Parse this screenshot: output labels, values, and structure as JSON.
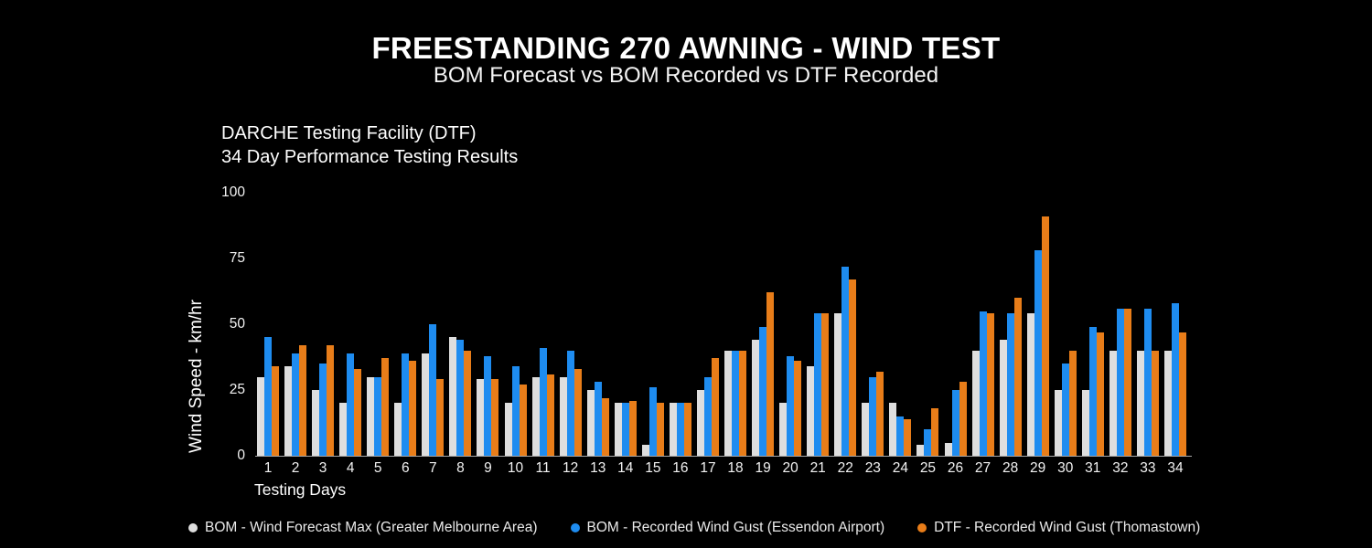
{
  "title": "FREESTANDING 270 AWNING - WIND TEST",
  "subtitle": "BOM Forecast vs BOM Recorded vs DTF Recorded",
  "annotation": {
    "line1": "DARCHE Testing Facility (DTF)",
    "line2": "34 Day Performance Testing Results"
  },
  "chart_data": {
    "type": "bar",
    "title": "FREESTANDING 270 AWNING - WIND TEST",
    "subtitle": "BOM Forecast vs BOM Recorded vs DTF Recorded",
    "xlabel": "Testing Days",
    "ylabel": "Wind Speed - km/hr",
    "ylim": [
      0,
      100
    ],
    "yticks": [
      0,
      25,
      50,
      75,
      100
    ],
    "grid": false,
    "legend_position": "bottom",
    "categories": [
      1,
      2,
      3,
      4,
      5,
      6,
      7,
      8,
      9,
      10,
      11,
      12,
      13,
      14,
      15,
      16,
      17,
      18,
      19,
      20,
      21,
      22,
      23,
      24,
      25,
      26,
      27,
      28,
      29,
      30,
      31,
      32,
      33,
      34
    ],
    "series": [
      {
        "id": "bom-forecast-max",
        "name": "BOM - Wind Forecast Max (Greater Melbourne Area)",
        "color": "#dedede",
        "values": [
          30,
          34,
          25,
          20,
          30,
          20,
          39,
          45,
          29,
          20,
          30,
          30,
          25,
          20,
          4,
          20,
          25,
          40,
          44,
          20,
          34,
          54,
          20,
          20,
          4,
          5,
          40,
          44,
          54,
          25,
          25,
          40,
          40,
          40
        ]
      },
      {
        "id": "bom-recorded-gust",
        "name": "BOM - Recorded Wind Gust (Essendon Airport)",
        "color": "#1e8cf0",
        "values": [
          45,
          39,
          35,
          39,
          30,
          39,
          50,
          44,
          38,
          34,
          41,
          40,
          28,
          20,
          26,
          20,
          30,
          40,
          49,
          38,
          54,
          72,
          30,
          15,
          10,
          25,
          55,
          54,
          78,
          35,
          49,
          56,
          56,
          58
        ]
      },
      {
        "id": "dtf-recorded-gust",
        "name": "DTF - Recorded Wind Gust (Thomastown)",
        "color": "#e87d19",
        "values": [
          34,
          42,
          42,
          33,
          37,
          36,
          29,
          40,
          29,
          27,
          31,
          33,
          22,
          21,
          20,
          20,
          37,
          40,
          62,
          36,
          54,
          67,
          32,
          14,
          18,
          28,
          54,
          60,
          91,
          40,
          47,
          56,
          40,
          47
        ]
      }
    ]
  }
}
